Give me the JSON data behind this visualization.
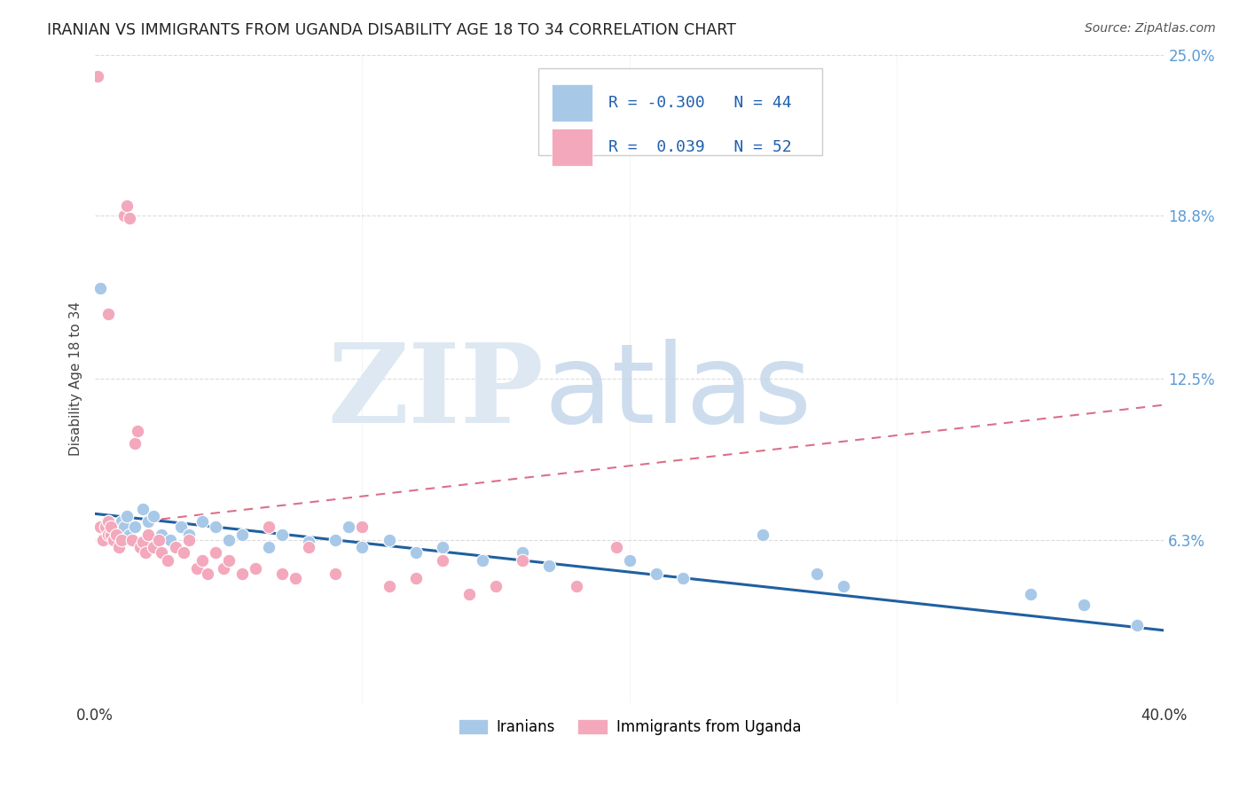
{
  "title": "IRANIAN VS IMMIGRANTS FROM UGANDA DISABILITY AGE 18 TO 34 CORRELATION CHART",
  "source": "Source: ZipAtlas.com",
  "ylabel": "Disability Age 18 to 34",
  "xlim": [
    0.0,
    0.4
  ],
  "ylim": [
    0.0,
    0.25
  ],
  "yticks": [
    0.063,
    0.125,
    0.188,
    0.25
  ],
  "ytick_labels": [
    "6.3%",
    "12.5%",
    "18.8%",
    "25.0%"
  ],
  "xticks": [
    0.0,
    0.1,
    0.2,
    0.3,
    0.4
  ],
  "xtick_labels": [
    "0.0%",
    "",
    "",
    "",
    "40.0%"
  ],
  "iranian_color": "#a8c8e8",
  "uganda_color": "#f4a8bc",
  "iran_line_color": "#2060a0",
  "uganda_line_color": "#d04060",
  "iranian_R": -0.3,
  "iranian_N": 44,
  "uganda_R": 0.039,
  "uganda_N": 52,
  "background_color": "#ffffff",
  "grid_color": "#cccccc",
  "iranians_x": [
    0.002,
    0.004,
    0.005,
    0.006,
    0.007,
    0.008,
    0.009,
    0.01,
    0.011,
    0.012,
    0.013,
    0.015,
    0.018,
    0.02,
    0.022,
    0.025,
    0.028,
    0.032,
    0.035,
    0.04,
    0.045,
    0.05,
    0.055,
    0.065,
    0.07,
    0.08,
    0.09,
    0.095,
    0.1,
    0.11,
    0.12,
    0.13,
    0.145,
    0.16,
    0.17,
    0.2,
    0.21,
    0.22,
    0.25,
    0.27,
    0.28,
    0.35,
    0.37,
    0.39
  ],
  "iranians_y": [
    0.16,
    0.068,
    0.07,
    0.065,
    0.068,
    0.065,
    0.063,
    0.07,
    0.068,
    0.072,
    0.065,
    0.068,
    0.075,
    0.07,
    0.072,
    0.065,
    0.063,
    0.068,
    0.065,
    0.07,
    0.068,
    0.063,
    0.065,
    0.06,
    0.065,
    0.062,
    0.063,
    0.068,
    0.06,
    0.063,
    0.058,
    0.06,
    0.055,
    0.058,
    0.053,
    0.055,
    0.05,
    0.048,
    0.065,
    0.05,
    0.045,
    0.042,
    0.038,
    0.03
  ],
  "uganda_x": [
    0.001,
    0.002,
    0.003,
    0.004,
    0.005,
    0.005,
    0.006,
    0.006,
    0.007,
    0.008,
    0.009,
    0.01,
    0.011,
    0.012,
    0.013,
    0.014,
    0.015,
    0.016,
    0.017,
    0.018,
    0.019,
    0.02,
    0.022,
    0.024,
    0.025,
    0.027,
    0.03,
    0.033,
    0.035,
    0.038,
    0.04,
    0.042,
    0.045,
    0.048,
    0.05,
    0.055,
    0.06,
    0.065,
    0.07,
    0.075,
    0.08,
    0.09,
    0.1,
    0.11,
    0.12,
    0.13,
    0.14,
    0.15,
    0.16,
    0.18,
    0.195,
    0.005
  ],
  "uganda_y": [
    0.242,
    0.068,
    0.063,
    0.068,
    0.065,
    0.07,
    0.065,
    0.068,
    0.063,
    0.065,
    0.06,
    0.063,
    0.188,
    0.192,
    0.187,
    0.063,
    0.1,
    0.105,
    0.06,
    0.062,
    0.058,
    0.065,
    0.06,
    0.063,
    0.058,
    0.055,
    0.06,
    0.058,
    0.063,
    0.052,
    0.055,
    0.05,
    0.058,
    0.052,
    0.055,
    0.05,
    0.052,
    0.068,
    0.05,
    0.048,
    0.06,
    0.05,
    0.068,
    0.045,
    0.048,
    0.055,
    0.042,
    0.045,
    0.055,
    0.045,
    0.06,
    0.15
  ],
  "iran_trend_x": [
    0.0,
    0.4
  ],
  "iran_trend_y": [
    0.073,
    0.028
  ],
  "uganda_trend_x": [
    0.0,
    0.4
  ],
  "uganda_trend_y": [
    0.068,
    0.115
  ]
}
